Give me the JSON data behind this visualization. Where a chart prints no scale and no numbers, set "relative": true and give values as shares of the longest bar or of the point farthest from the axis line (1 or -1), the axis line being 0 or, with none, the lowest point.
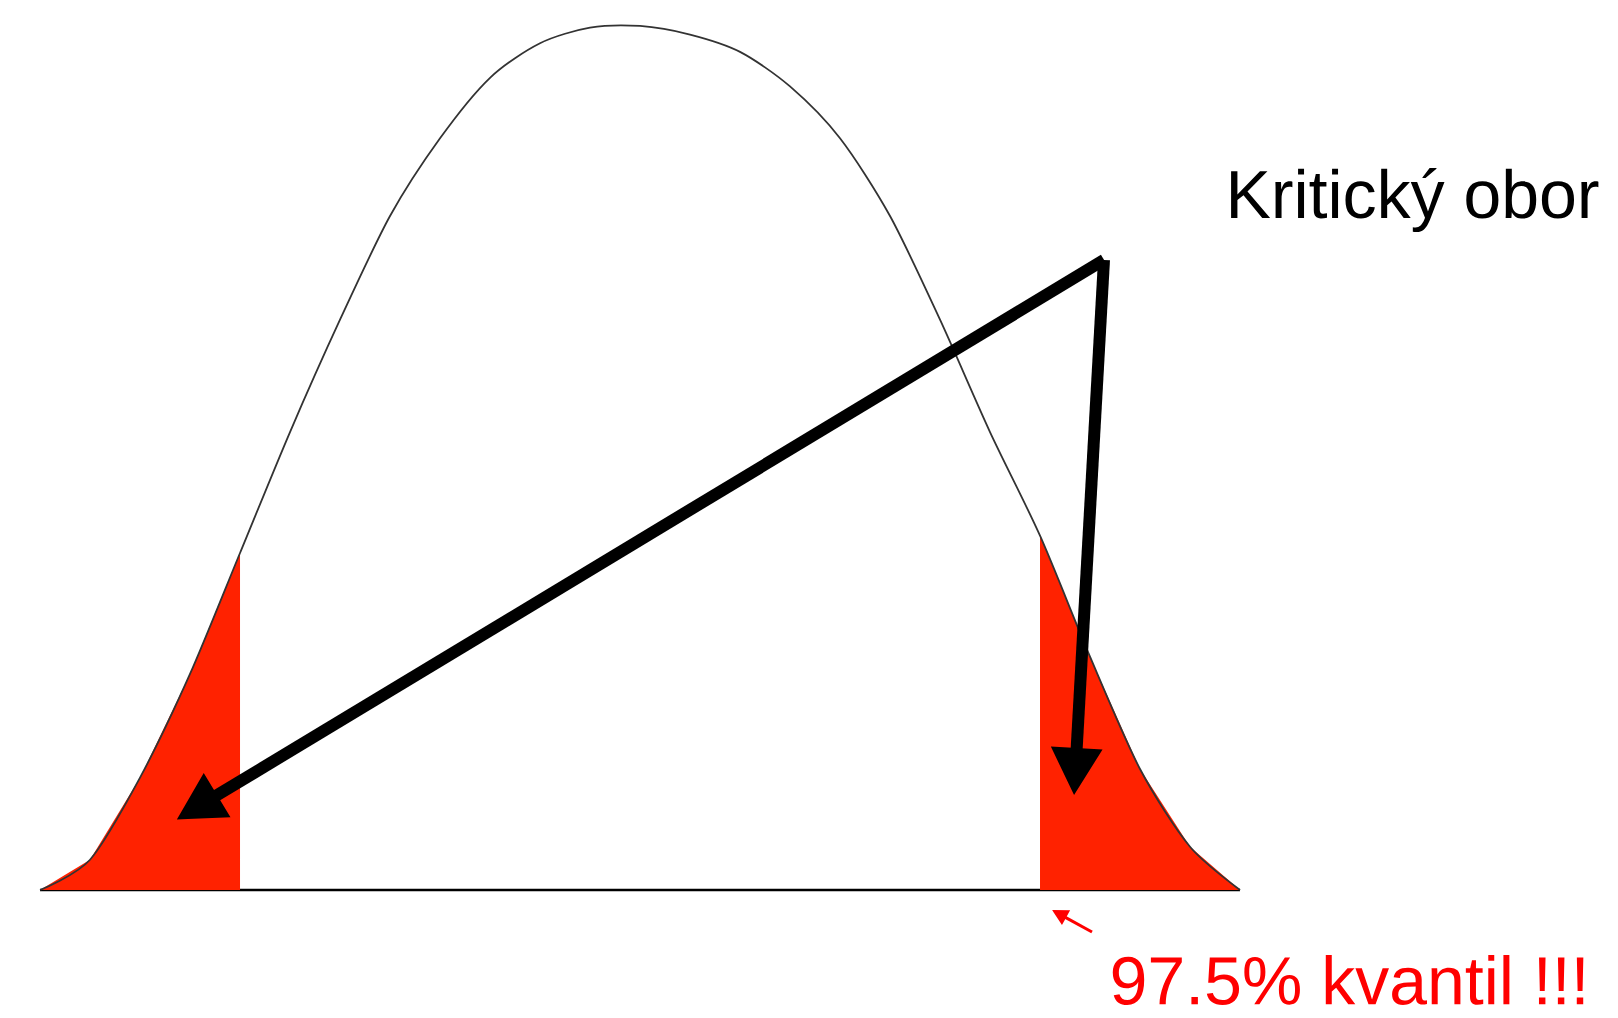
{
  "chart_data": {
    "type": "line",
    "relative": true,
    "categories": [
      null,
      null,
      null,
      null,
      null,
      null,
      null,
      null,
      null,
      null,
      null,
      null,
      null,
      null,
      null,
      null,
      null,
      null,
      null,
      null,
      null,
      null,
      null,
      null,
      null
    ],
    "series": [
      {
        "color": "#333333",
        "values": [
          0,
          0.035,
          0.13,
          0.25,
          0.39,
          0.53,
          0.66,
          0.78,
          0.87,
          0.94,
          0.98,
          0.998,
          1,
          0.99,
          0.97,
          0.93,
          0.87,
          0.78,
          0.66,
          0.53,
          0.41,
          0.27,
          0.14,
          0.05,
          0
        ]
      },
      {
        "type": "area",
        "color": "#ff2200",
        "values": [
          0,
          0.035,
          0.13,
          0.25,
          0.39,
          null,
          null,
          null,
          null,
          null,
          null,
          null,
          null,
          null,
          null,
          null,
          null,
          null,
          null,
          null,
          null,
          null,
          null,
          null,
          null
        ]
      },
      {
        "type": "area",
        "color": "#ff2200",
        "values": [
          null,
          null,
          null,
          null,
          null,
          null,
          null,
          null,
          null,
          null,
          null,
          null,
          null,
          null,
          null,
          null,
          null,
          null,
          null,
          null,
          0.41,
          0.27,
          0.14,
          0.05,
          0
        ]
      }
    ],
    "annotations": [
      "Kritický obor",
      "97.5% kvantil !!!"
    ]
  }
}
